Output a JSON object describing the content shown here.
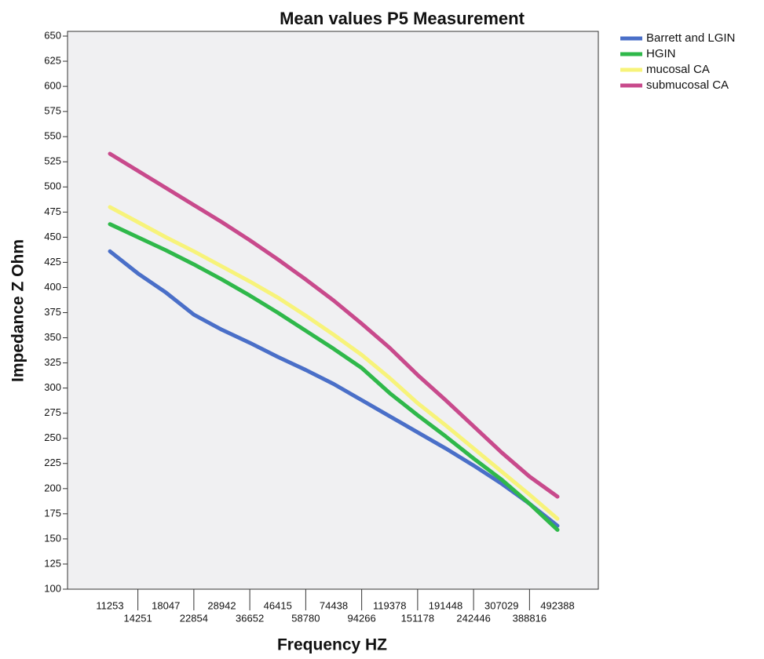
{
  "chart_data": {
    "type": "line",
    "title": "Mean values P5 Measurement",
    "x_label": "Frequency HZ",
    "y_label": "Impedance Z Ohm",
    "categories": [
      "11253",
      "14251",
      "18047",
      "22854",
      "28942",
      "36652",
      "46415",
      "58780",
      "74438",
      "94266",
      "119378",
      "151178",
      "191448",
      "242446",
      "307029",
      "388816",
      "492388"
    ],
    "series": [
      {
        "name": "Barrett and LGIN",
        "color": "#4a6fc8",
        "values": [
          436,
          414,
          395,
          373,
          358,
          345,
          331,
          318,
          304,
          288,
          272,
          256,
          240,
          223,
          205,
          185,
          163
        ]
      },
      {
        "name": "HGIN",
        "color": "#2fb84a",
        "values": [
          463,
          450,
          437,
          423,
          408,
          392,
          375,
          357,
          339,
          320,
          295,
          273,
          252,
          230,
          209,
          185,
          159
        ]
      },
      {
        "name": "mucosal CA",
        "color": "#f7f37a",
        "values": [
          480,
          465,
          450,
          436,
          421,
          406,
          390,
          372,
          353,
          333,
          310,
          285,
          263,
          240,
          217,
          194,
          170
        ]
      },
      {
        "name": "submucosal CA",
        "color": "#c84a8c",
        "values": [
          533,
          516,
          499,
          482,
          465,
          447,
          428,
          408,
          387,
          364,
          340,
          313,
          288,
          262,
          236,
          212,
          192
        ]
      }
    ],
    "ylim": [
      100,
      650
    ],
    "yticks": [
      100,
      125,
      150,
      175,
      200,
      225,
      250,
      275,
      300,
      325,
      350,
      375,
      400,
      425,
      450,
      475,
      500,
      525,
      550,
      575,
      600,
      625,
      650
    ],
    "legend": "right"
  }
}
